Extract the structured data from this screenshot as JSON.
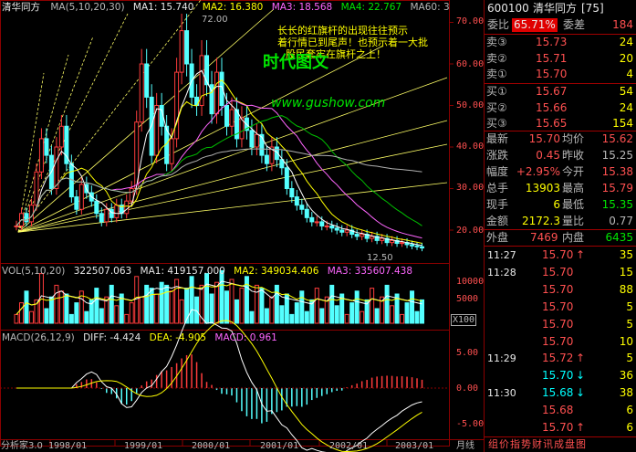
{
  "colors": {
    "up": "#ff3c3c",
    "down": "#54ffff",
    "ma1": "#ffffff",
    "ma2": "#ffff00",
    "ma3": "#ff66ff",
    "ma4": "#00c000",
    "ma60": "#b0b0b0",
    "grid": "#8b0000",
    "annotation": "#ffff00",
    "watermark": "#00ff00",
    "url": "#00ff00"
  },
  "header": {
    "app_name": "清华同方",
    "ma_params": "MA(5,10,20,30)",
    "ma1": "MA1: 15.740",
    "ma2": "MA2: 16.380",
    "ma3": "MA3: 18.568",
    "ma4": "MA4: 22.767",
    "ma60": "MA60: 3",
    "high_mark": "72.00",
    "low_mark": "12.50"
  },
  "annotation": {
    "line1": "长长的红旗杆的出现往往预示",
    "line2": "着行情已到尾声！也预示着一大批",
    "line3": "股民套牢在旗杆之上！",
    "watermark": "时代图文",
    "url": "www.gushow.com"
  },
  "price_axis": [
    "70.00",
    "60.00",
    "50.00",
    "40.00",
    "30.00",
    "20.00"
  ],
  "vol": {
    "title": "VOL(5,10,20)",
    "value": "322507.063",
    "ma1": "MA1: 419157.000",
    "ma2": "MA2: 349034.406",
    "ma3": "MA3: 335607.438",
    "axis_top": "10000",
    "axis_mid": "5000",
    "unit": "X100"
  },
  "macd": {
    "title": "MACD(26,12,9)",
    "diff": "DIFF: -4.424",
    "dea": "DEA: -4.905",
    "macd": "MACD: 0.961",
    "axis": [
      "5.00",
      "0.00",
      "-5.00"
    ]
  },
  "date_axis": {
    "left_label": "分析家3.0",
    "labels": [
      "1998/01",
      "1999/01",
      "2000/01",
      "2001/01",
      "2002/01",
      "2003/01"
    ],
    "period": "月线"
  },
  "quote": {
    "code": "600100",
    "name": "清华同方",
    "tag": "[75]",
    "weibi_label": "委比",
    "weibi_value": "65.71%",
    "weicha_label": "委差",
    "weicha_value": "184",
    "asks": [
      {
        "label": "卖③",
        "price": "15.73",
        "vol": "24"
      },
      {
        "label": "卖②",
        "price": "15.71",
        "vol": "20"
      },
      {
        "label": "卖①",
        "price": "15.70",
        "vol": "4"
      }
    ],
    "bids": [
      {
        "label": "买①",
        "price": "15.67",
        "vol": "54"
      },
      {
        "label": "买②",
        "price": "15.66",
        "vol": "24"
      },
      {
        "label": "买③",
        "price": "15.65",
        "vol": "154"
      }
    ],
    "stats": [
      {
        "l1": "最新",
        "v1": "15.70",
        "l2": "均价",
        "v2": "15.62"
      },
      {
        "l1": "涨跌",
        "v1": "0.45",
        "l2": "昨收",
        "v2": "15.25"
      },
      {
        "l1": "幅度",
        "v1": "+2.95%",
        "l2": "今开",
        "v2": "15.38"
      },
      {
        "l1": "总手",
        "v1": "13903",
        "l2": "最高",
        "v2": "15.79"
      },
      {
        "l1": "现手",
        "v1": "6",
        "l2": "最低",
        "v2": "15.35"
      },
      {
        "l1": "金额",
        "v1": "2172.3",
        "l2": "量比",
        "v2": "0.77"
      }
    ],
    "waipan_label": "外盘",
    "waipan_value": "7469",
    "neipan_label": "内盘",
    "neipan_value": "6435",
    "ticks": [
      {
        "time": "11:27",
        "price": "15.70",
        "arrow": "↑",
        "vol": "35"
      },
      {
        "time": "11:28",
        "price": "15.70",
        "arrow": "",
        "vol": "15"
      },
      {
        "time": "",
        "price": "15.70",
        "arrow": "",
        "vol": "88"
      },
      {
        "time": "",
        "price": "15.70",
        "arrow": "",
        "vol": "5"
      },
      {
        "time": "",
        "price": "15.70",
        "arrow": "",
        "vol": "5"
      },
      {
        "time": "",
        "price": "15.70",
        "arrow": "",
        "vol": "10"
      },
      {
        "time": "11:29",
        "price": "15.72",
        "arrow": "↑",
        "vol": "5"
      },
      {
        "time": "",
        "price": "15.70",
        "arrow": "↓",
        "vol": "36"
      },
      {
        "time": "11:30",
        "price": "15.68",
        "arrow": "↓",
        "vol": "38"
      },
      {
        "time": "",
        "price": "15.68",
        "arrow": "",
        "vol": "6"
      },
      {
        "time": "",
        "price": "15.70",
        "arrow": "↑",
        "vol": "6"
      }
    ],
    "bottom_tabs": "组价指势财讯成盘图"
  }
}
